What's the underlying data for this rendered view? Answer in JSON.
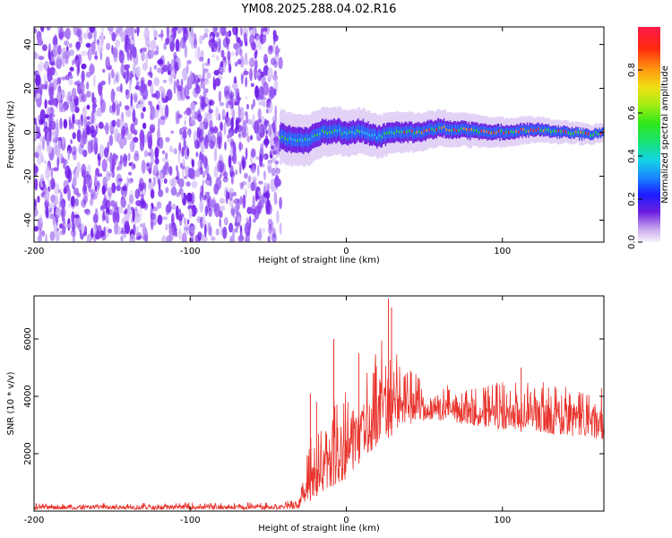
{
  "title": "YM08.2025.288.04.02.R16",
  "chart_data": [
    {
      "type": "heatmap",
      "xlabel": "Height of straight line (km)",
      "ylabel": "Frequency (Hz)",
      "xlim": [
        -200,
        165
      ],
      "ylim": [
        -50,
        48
      ],
      "xticks": [
        -200,
        -100,
        0,
        100
      ],
      "yticks": [
        -40,
        -20,
        0,
        20,
        40
      ],
      "noise_region_x": [
        -200,
        -42
      ],
      "signal_center_hz": [
        [
          -42,
          -2
        ],
        [
          -35,
          -3
        ],
        [
          -25,
          -4
        ],
        [
          -15,
          0
        ],
        [
          -5,
          1
        ],
        [
          0,
          -1
        ],
        [
          10,
          1
        ],
        [
          20,
          -2
        ],
        [
          30,
          0
        ],
        [
          45,
          0
        ],
        [
          60,
          2
        ],
        [
          75,
          1
        ],
        [
          90,
          0
        ],
        [
          105,
          0
        ],
        [
          115,
          1
        ],
        [
          125,
          1
        ],
        [
          140,
          0
        ],
        [
          155,
          -1
        ],
        [
          165,
          0
        ]
      ],
      "colorbar": {
        "label": "Normalized spectral amplitude",
        "ticks": [
          0.0,
          0.2,
          0.4,
          0.6,
          0.8
        ],
        "range": [
          0,
          1
        ]
      }
    },
    {
      "type": "line",
      "xlabel": "Height of straight line (km)",
      "ylabel": "SNR (10 * v/v)",
      "xlim": [
        -200,
        165
      ],
      "ylim": [
        0,
        7500
      ],
      "xticks": [
        -200,
        -100,
        0,
        100
      ],
      "yticks": [
        2000,
        4000,
        6000
      ],
      "color": "#e8332c",
      "envelope": [
        {
          "x": -200,
          "low": 60,
          "high": 280
        },
        {
          "x": -40,
          "low": 60,
          "high": 300
        },
        {
          "x": -30,
          "low": 80,
          "high": 600
        },
        {
          "x": -22,
          "low": 400,
          "high": 3000
        },
        {
          "x": -15,
          "low": 700,
          "high": 3000
        },
        {
          "x": -8,
          "low": 900,
          "high": 4200
        },
        {
          "x": 0,
          "low": 1100,
          "high": 4500
        },
        {
          "x": 10,
          "low": 1800,
          "high": 5000
        },
        {
          "x": 20,
          "low": 2300,
          "high": 5800
        },
        {
          "x": 28,
          "low": 2600,
          "high": 6300
        },
        {
          "x": 40,
          "low": 3000,
          "high": 5000
        },
        {
          "x": 55,
          "low": 3200,
          "high": 4500
        },
        {
          "x": 80,
          "low": 3000,
          "high": 4400
        },
        {
          "x": 100,
          "low": 2800,
          "high": 4500
        },
        {
          "x": 130,
          "low": 2700,
          "high": 4500
        },
        {
          "x": 165,
          "low": 2500,
          "high": 4300
        }
      ],
      "peaks": [
        {
          "x": -23,
          "y": 4100
        },
        {
          "x": -19,
          "y": 3800
        },
        {
          "x": -8,
          "y": 6000
        },
        {
          "x": 8,
          "y": 5500
        },
        {
          "x": 27,
          "y": 7400
        },
        {
          "x": 29,
          "y": 7100
        },
        {
          "x": 112,
          "y": 5000
        }
      ]
    }
  ]
}
